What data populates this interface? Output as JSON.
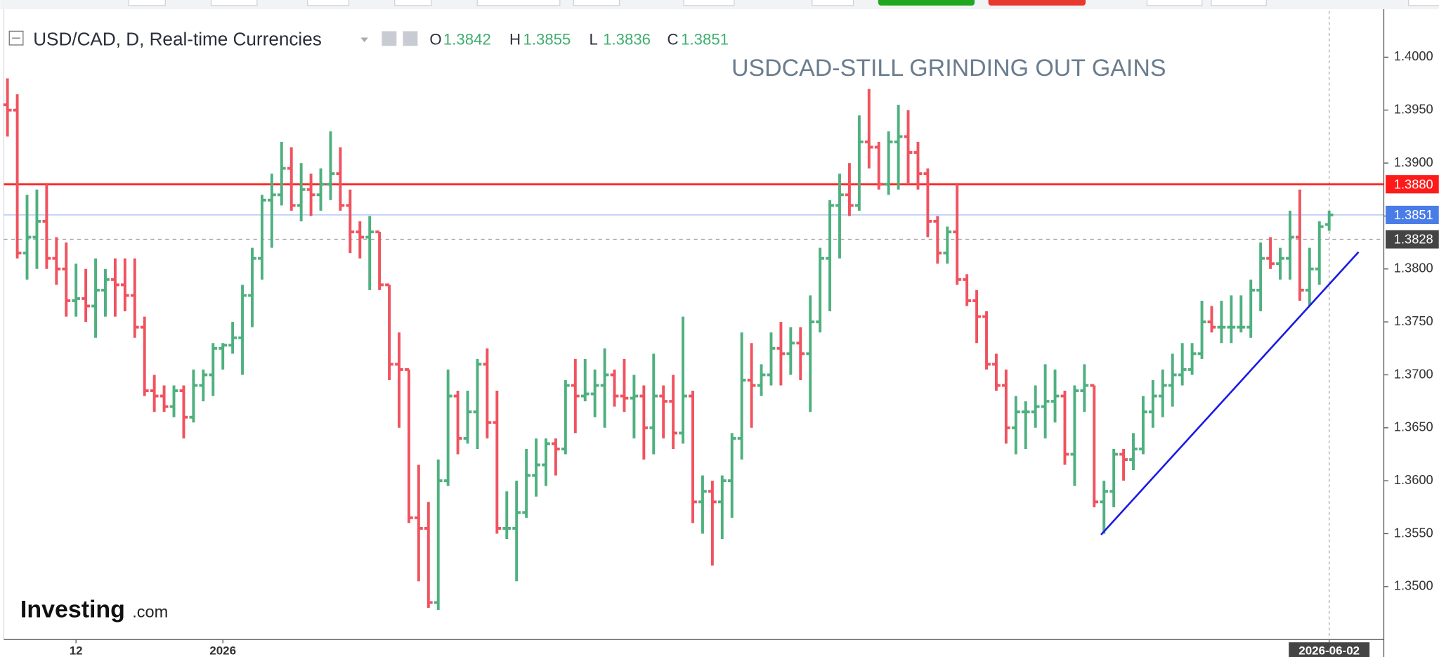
{
  "chart_data": {
    "type": "ohlc",
    "symbol": "USD/CAD, D, Real-time Currencies",
    "title": "USDCAD-STILL GRINDING OUT GAINS",
    "ohlc_legend": [
      {
        "key": "O",
        "value": 1.3842
      },
      {
        "key": "H",
        "value": 1.3855
      },
      {
        "key": "L",
        "value": 1.3836
      },
      {
        "key": "C",
        "value": 1.3851
      }
    ],
    "logo": "Investing",
    "logo_suffix": ".com",
    "up_color": "#4fb07f",
    "down_color": "#f0525f",
    "ylim": [
      1.345,
      1.4041
    ],
    "yticks": [
      {
        "value": 1.35,
        "label": "1.3500"
      },
      {
        "value": 1.355,
        "label": "1.3550"
      },
      {
        "value": 1.36,
        "label": "1.3600"
      },
      {
        "value": 1.365,
        "label": "1.3650"
      },
      {
        "value": 1.37,
        "label": "1.3700"
      },
      {
        "value": 1.375,
        "label": "1.3750"
      },
      {
        "value": 1.38,
        "label": "1.3800"
      },
      {
        "value": 1.385,
        "label": "1.3850"
      },
      {
        "value": 1.39,
        "label": "1.3900"
      },
      {
        "value": 1.395,
        "label": "1.3950"
      },
      {
        "value": 1.4,
        "label": "1.4000"
      }
    ],
    "price_lines": [
      {
        "value": 1.388,
        "label": "1.3880",
        "color": "#ff1a1a",
        "dashed": false
      },
      {
        "value": 1.3851,
        "label": "1.3851",
        "color": "#4a7ce8",
        "dashed": false
      },
      {
        "value": 1.3828,
        "label": "1.3828",
        "color": "#444444",
        "dashed": true
      }
    ],
    "trendline": {
      "from": {
        "x": 111.7,
        "y": 1.3549
      },
      "to": {
        "x": 138,
        "y": 1.3816
      },
      "color": "#1a1ae6"
    },
    "categories": [
      null,
      null,
      null,
      null,
      null,
      null,
      null,
      "12",
      null,
      null,
      null,
      null,
      null,
      null,
      null,
      null,
      null,
      null,
      null,
      null,
      null,
      null,
      "2026",
      null,
      null,
      null,
      null,
      null,
      null,
      null,
      null,
      null,
      null,
      null,
      null,
      null,
      null,
      null,
      null,
      null,
      null,
      null,
      null,
      null,
      null,
      null,
      null,
      null,
      null,
      null,
      null,
      null,
      null,
      null,
      null,
      null,
      null,
      null,
      null,
      null,
      null,
      null,
      null,
      null,
      null,
      null,
      null,
      null,
      null,
      null,
      null,
      null,
      null,
      null,
      null,
      null,
      null,
      null,
      null,
      null,
      null,
      null,
      null,
      null,
      null,
      null,
      null,
      null,
      null,
      null,
      null,
      null,
      null,
      null,
      null,
      null,
      null,
      null,
      null,
      null,
      null,
      null,
      null,
      null,
      null,
      null,
      null,
      null,
      null,
      null,
      null,
      null,
      null,
      null,
      null,
      null,
      null,
      null,
      null,
      null,
      null,
      null,
      null,
      null,
      null,
      null,
      null,
      null,
      null,
      null,
      null,
      null,
      null,
      null,
      null,
      "2026-06-02"
    ],
    "opens": [
      1.3955,
      1.395,
      1.3815,
      1.383,
      1.3845,
      1.381,
      1.38,
      1.377,
      1.3772,
      1.3765,
      1.378,
      1.379,
      1.3785,
      1.3775,
      1.3745,
      1.3685,
      1.368,
      1.367,
      1.3685,
      1.366,
      1.369,
      1.37,
      1.3725,
      1.3728,
      1.3735,
      1.3775,
      1.381,
      1.3865,
      1.387,
      1.3895,
      1.386,
      1.3875,
      1.387,
      1.388,
      1.389,
      1.386,
      1.3835,
      1.383,
      1.3835,
      1.3785,
      1.371,
      1.3705,
      1.3565,
      1.3555,
      1.3485,
      1.36,
      1.368,
      1.364,
      1.3665,
      1.371,
      1.3655,
      1.3555,
      1.3555,
      1.357,
      1.3605,
      1.3615,
      1.3635,
      1.363,
      1.369,
      1.368,
      1.3682,
      1.369,
      1.37,
      1.368,
      1.3678,
      1.368,
      1.365,
      1.368,
      1.3675,
      1.3645,
      1.368,
      1.358,
      1.359,
      1.358,
      1.36,
      1.364,
      1.3695,
      1.369,
      1.37,
      1.3725,
      1.372,
      1.373,
      1.372,
      1.375,
      1.381,
      1.386,
      1.387,
      1.386,
      1.392,
      1.3915,
      1.388,
      1.392,
      1.3925,
      1.391,
      1.389,
      1.3845,
      1.3815,
      1.3835,
      1.379,
      1.377,
      1.3755,
      1.371,
      1.369,
      1.365,
      1.3665,
      1.3665,
      1.367,
      1.3675,
      1.368,
      1.3625,
      1.3685,
      1.369,
      1.358,
      1.359,
      1.3625,
      1.362,
      1.363,
      1.3665,
      1.368,
      1.369,
      1.37,
      1.3705,
      1.372,
      1.375,
      1.3745,
      1.3745,
      1.3745,
      1.3745,
      1.378,
      1.381,
      1.3805,
      1.381,
      1.383,
      1.378,
      1.38,
      1.3842
    ],
    "highs": [
      1.398,
      1.3965,
      1.387,
      1.3875,
      1.388,
      1.383,
      1.3825,
      1.3805,
      1.38,
      1.381,
      1.38,
      1.381,
      1.381,
      1.381,
      1.3755,
      1.37,
      1.369,
      1.369,
      1.369,
      1.3705,
      1.3705,
      1.373,
      1.373,
      1.375,
      1.3785,
      1.382,
      1.387,
      1.389,
      1.392,
      1.3915,
      1.39,
      1.389,
      1.3895,
      1.393,
      1.3915,
      1.3875,
      1.3845,
      1.385,
      1.3835,
      1.3785,
      1.374,
      1.3705,
      1.3615,
      1.358,
      1.362,
      1.3705,
      1.3685,
      1.3685,
      1.3715,
      1.3725,
      1.3685,
      1.359,
      1.36,
      1.363,
      1.364,
      1.364,
      1.364,
      1.3695,
      1.3715,
      1.3715,
      1.3705,
      1.3725,
      1.3705,
      1.3715,
      1.37,
      1.369,
      1.372,
      1.369,
      1.37,
      1.3755,
      1.3685,
      1.3605,
      1.36,
      1.3605,
      1.3645,
      1.374,
      1.373,
      1.371,
      1.374,
      1.375,
      1.3745,
      1.3745,
      1.3775,
      1.382,
      1.3865,
      1.389,
      1.39,
      1.3945,
      1.397,
      1.392,
      1.393,
      1.3955,
      1.395,
      1.392,
      1.3895,
      1.385,
      1.384,
      1.388,
      1.3795,
      1.378,
      1.376,
      1.372,
      1.3705,
      1.368,
      1.3675,
      1.369,
      1.371,
      1.3705,
      1.3685,
      1.369,
      1.371,
      1.369,
      1.36,
      1.363,
      1.363,
      1.3645,
      1.368,
      1.3695,
      1.3705,
      1.372,
      1.373,
      1.373,
      1.377,
      1.3765,
      1.377,
      1.3775,
      1.3775,
      1.379,
      1.3825,
      1.383,
      1.382,
      1.3855,
      1.3875,
      1.382,
      1.3845,
      1.3855
    ],
    "lows": [
      1.3925,
      1.381,
      1.379,
      1.38,
      1.38,
      1.3785,
      1.3755,
      1.3755,
      1.375,
      1.3735,
      1.3755,
      1.3755,
      1.376,
      1.3735,
      1.368,
      1.3665,
      1.3665,
      1.366,
      1.364,
      1.3655,
      1.3675,
      1.368,
      1.3705,
      1.372,
      1.37,
      1.3745,
      1.379,
      1.382,
      1.386,
      1.3855,
      1.3845,
      1.385,
      1.3855,
      1.3865,
      1.3855,
      1.3815,
      1.381,
      1.378,
      1.378,
      1.3695,
      1.365,
      1.356,
      1.3505,
      1.348,
      1.3478,
      1.3595,
      1.3625,
      1.3635,
      1.363,
      1.364,
      1.355,
      1.3545,
      1.3505,
      1.3565,
      1.3585,
      1.3595,
      1.3605,
      1.3625,
      1.3645,
      1.3675,
      1.366,
      1.365,
      1.367,
      1.3665,
      1.364,
      1.362,
      1.3625,
      1.364,
      1.363,
      1.3635,
      1.356,
      1.355,
      1.352,
      1.3545,
      1.3565,
      1.362,
      1.365,
      1.368,
      1.369,
      1.369,
      1.37,
      1.3695,
      1.3665,
      1.374,
      1.376,
      1.381,
      1.385,
      1.3855,
      1.3895,
      1.3875,
      1.387,
      1.3875,
      1.388,
      1.3875,
      1.383,
      1.3805,
      1.3805,
      1.3785,
      1.3765,
      1.373,
      1.3705,
      1.3685,
      1.3635,
      1.3625,
      1.363,
      1.365,
      1.364,
      1.3655,
      1.3615,
      1.3595,
      1.3665,
      1.3575,
      1.355,
      1.3575,
      1.36,
      1.361,
      1.3625,
      1.365,
      1.366,
      1.367,
      1.369,
      1.37,
      1.3715,
      1.374,
      1.373,
      1.373,
      1.374,
      1.3735,
      1.376,
      1.38,
      1.379,
      1.379,
      1.377,
      1.3765,
      1.3785,
      1.3836
    ],
    "closes": [
      1.395,
      1.3815,
      1.383,
      1.3845,
      1.381,
      1.38,
      1.377,
      1.3772,
      1.3765,
      1.378,
      1.379,
      1.3785,
      1.3775,
      1.3745,
      1.3685,
      1.368,
      1.367,
      1.3685,
      1.366,
      1.369,
      1.37,
      1.3725,
      1.3728,
      1.3735,
      1.3775,
      1.381,
      1.3865,
      1.387,
      1.3895,
      1.386,
      1.3875,
      1.387,
      1.388,
      1.389,
      1.386,
      1.3835,
      1.383,
      1.3835,
      1.3785,
      1.371,
      1.3705,
      1.3565,
      1.3555,
      1.3485,
      1.36,
      1.368,
      1.364,
      1.3665,
      1.371,
      1.3655,
      1.3555,
      1.3555,
      1.357,
      1.3605,
      1.3615,
      1.3635,
      1.363,
      1.369,
      1.368,
      1.3682,
      1.369,
      1.37,
      1.368,
      1.3678,
      1.368,
      1.365,
      1.368,
      1.3675,
      1.3645,
      1.368,
      1.358,
      1.359,
      1.358,
      1.36,
      1.364,
      1.3695,
      1.369,
      1.37,
      1.3725,
      1.372,
      1.373,
      1.372,
      1.375,
      1.381,
      1.386,
      1.387,
      1.386,
      1.392,
      1.3915,
      1.388,
      1.392,
      1.3925,
      1.391,
      1.389,
      1.3845,
      1.3815,
      1.3835,
      1.379,
      1.377,
      1.3755,
      1.371,
      1.369,
      1.365,
      1.3665,
      1.3665,
      1.367,
      1.3675,
      1.368,
      1.3625,
      1.3685,
      1.369,
      1.358,
      1.359,
      1.3625,
      1.362,
      1.363,
      1.3665,
      1.368,
      1.369,
      1.37,
      1.3705,
      1.372,
      1.375,
      1.3745,
      1.3745,
      1.3745,
      1.3745,
      1.378,
      1.381,
      1.3805,
      1.381,
      1.383,
      1.378,
      1.38,
      1.384,
      1.3851
    ]
  }
}
